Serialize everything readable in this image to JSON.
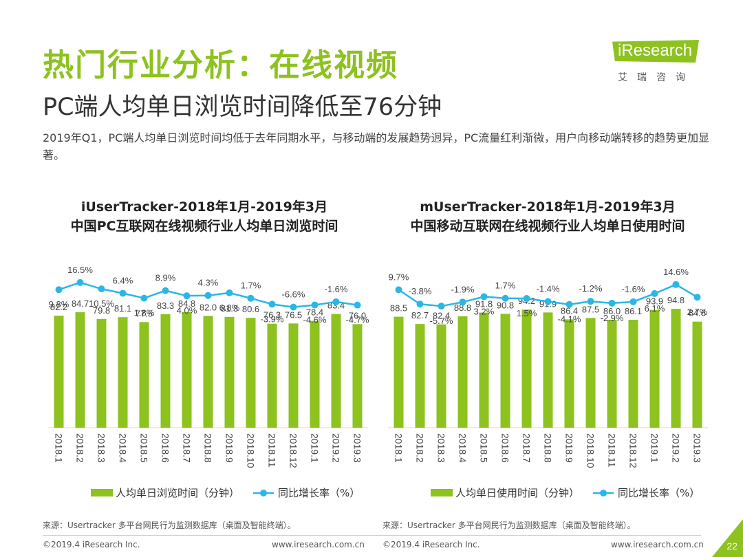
{
  "header": {
    "title": "热门行业分析：在线视频",
    "subtitle": "PC端人均单日浏览时间降低至76分钟",
    "description": "2019年Q1，PC端人均单日浏览时间均低于去年同期水平，与移动端的发展趋势迥异，PC流量红利渐微，用户向移动端转移的趋势更加显著。"
  },
  "logo": {
    "word": "iResearch",
    "sub": "艾瑞咨询"
  },
  "colors": {
    "bar": "#8dc21f",
    "line": "#2ab7e5",
    "title": "#8dc21f"
  },
  "chart_data": [
    {
      "type": "bar+line",
      "title": [
        "iUserTracker-2018年1月-2019年3月",
        "中国PC互联网在线视频行业人均单日浏览时间"
      ],
      "categories": [
        "2018.1",
        "2018.2",
        "2018.3",
        "2018.4",
        "2018.5",
        "2018.6",
        "2018.7",
        "2018.8",
        "2018.9",
        "2018.10",
        "2018.11",
        "2018.12",
        "2019.1",
        "2019.2",
        "2019.3"
      ],
      "series": [
        {
          "name": "人均单日浏览时间（分钟）",
          "kind": "bar",
          "values": [
            82.2,
            84.7,
            79.8,
            81.1,
            77.5,
            83.3,
            84.8,
            82.0,
            81.3,
            80.6,
            76.3,
            76.5,
            78.4,
            83.4,
            76.0
          ],
          "labels": [
            "82.2",
            "84.7",
            "79.8",
            "81.1",
            "77.5",
            "83.3",
            "84.8",
            "82.0",
            "81.3",
            "80.6",
            "76.3",
            "76.5",
            "78.4",
            "83.4",
            "76.0"
          ]
        },
        {
          "name": "同比增长率（%）",
          "kind": "line",
          "values": [
            9.8,
            16.5,
            10.5,
            6.4,
            1.8,
            8.9,
            4.0,
            4.3,
            6.8,
            1.7,
            -3.9,
            -6.6,
            -4.6,
            -1.6,
            -4.7
          ],
          "labels": [
            "9.8%",
            "16.5%",
            "10.5%",
            "6.4%",
            "1.8%",
            "8.9%",
            "4.0%",
            "4.3%",
            "6.8%",
            "1.7%",
            "-3.9%",
            "-6.6%",
            "-4.6%",
            "-1.6%",
            "-4.7%"
          ],
          "label_pos": [
            "below",
            "above",
            "below",
            "above",
            "below",
            "above",
            "below",
            "above",
            "below",
            "above",
            "below",
            "above",
            "below",
            "above",
            "below"
          ]
        }
      ],
      "bar_ylim": [
        0,
        115
      ],
      "line_ylim": [
        -25,
        30
      ],
      "source": "来源：Usertracker 多平台网民行为监测数据库（桌面及智能终端）。"
    },
    {
      "type": "bar+line",
      "title": [
        "mUserTracker-2018年1月-2019年3月",
        "中国移动互联网在线视频行业人均单日使用时间"
      ],
      "categories": [
        "2018.1",
        "2018.2",
        "2018.3",
        "2018.4",
        "2018.5",
        "2018.6",
        "2018.7",
        "2018.8",
        "2018.9",
        "2018.10",
        "2018.11",
        "2018.12",
        "2019.1",
        "2019.2",
        "2019.3"
      ],
      "series": [
        {
          "name": "人均单日使用时间（分钟）",
          "kind": "bar",
          "values": [
            88.5,
            82.7,
            82.4,
            88.8,
            91.8,
            90.8,
            94.2,
            91.9,
            86.4,
            87.5,
            86.0,
            86.1,
            93.9,
            94.8,
            84.6
          ],
          "labels": [
            "88.5",
            "82.7",
            "82.4",
            "88.8",
            "91.8",
            "90.8",
            "94.2",
            "91.9",
            "86.4",
            "87.5",
            "86.0",
            "86.1",
            "93.9",
            "94.8",
            "84.6"
          ]
        },
        {
          "name": "同比增长率（%）",
          "kind": "line",
          "values": [
            9.7,
            -3.8,
            -5.7,
            -1.9,
            3.2,
            1.7,
            1.5,
            -1.4,
            -4.1,
            -1.2,
            -2.9,
            -1.6,
            6.1,
            14.6,
            2.7
          ],
          "labels": [
            "9.7%",
            "-3.8%",
            "-5.7%",
            "-1.9%",
            "3.2%",
            "1.7%",
            "1.5%",
            "-1.4%",
            "-4.1%",
            "-1.2%",
            "-2.9%",
            "-1.6%",
            "6.1%",
            "14.6%",
            "2.7%"
          ],
          "label_pos": [
            "above",
            "above",
            "below",
            "above",
            "below",
            "above",
            "below",
            "above",
            "below",
            "above",
            "below",
            "above",
            "below",
            "above",
            "below"
          ]
        }
      ],
      "bar_ylim": [
        0,
        125
      ],
      "line_ylim": [
        -25,
        30
      ],
      "source": "来源：Usertracker 多平台网民行为监测数据库（桌面及智能终端）。"
    }
  ],
  "footer": {
    "copyright_left": "©2019.4 iResearch Inc.",
    "site_left": "www.iresearch.com.cn",
    "copyright_right": "©2019.4 iResearch Inc.",
    "site_right": "www.iresearch.com.cn",
    "page_number": "22"
  }
}
